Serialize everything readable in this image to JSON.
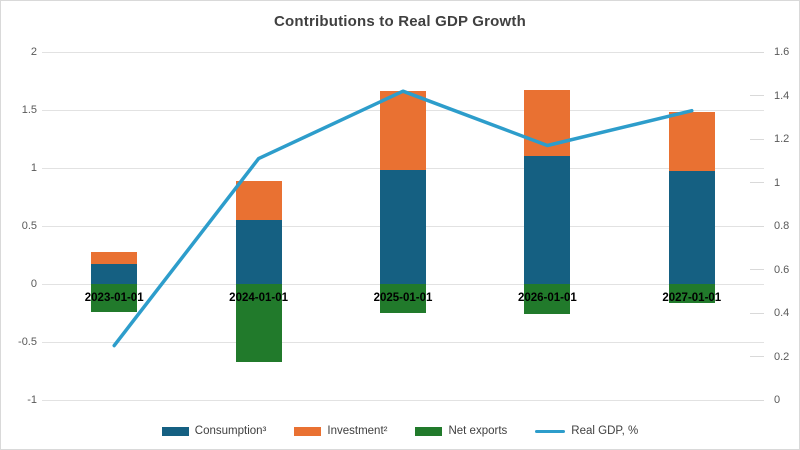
{
  "title": "Contributions to Real GDP Growth",
  "colors": {
    "consumption": "#156082",
    "investment": "#e97132",
    "net_exports": "#217a2b",
    "real_gdp_line": "#2d9dcb",
    "grid": "#e2e2e2",
    "right_tick": "#d9d9d9",
    "axis_tick_label": "#595959",
    "category_label": "#000000",
    "title_color": "#404040",
    "background": "#ffffff",
    "border": "#d9d9d9"
  },
  "chart_data": {
    "type": "bar",
    "stacked": true,
    "title": "Contributions to Real GDP Growth",
    "categories": [
      "2023-01-01",
      "2024-01-01",
      "2025-01-01",
      "2026-01-01",
      "2027-01-01"
    ],
    "series": [
      {
        "name": "Consumption³",
        "kind": "bar",
        "axis": "left",
        "color": "#156082",
        "values": [
          0.17,
          0.55,
          0.98,
          1.1,
          0.97
        ]
      },
      {
        "name": "Investment²",
        "kind": "bar",
        "axis": "left",
        "color": "#e97132",
        "values": [
          0.11,
          0.34,
          0.68,
          0.57,
          0.51
        ]
      },
      {
        "name": "Net exports",
        "kind": "bar",
        "axis": "left",
        "color": "#217a2b",
        "values": [
          -0.24,
          -0.67,
          -0.25,
          -0.26,
          -0.16
        ]
      },
      {
        "name": "Real GDP, %",
        "kind": "line",
        "axis": "right",
        "color": "#2d9dcb",
        "values": [
          0.25,
          1.11,
          1.42,
          1.17,
          1.33
        ]
      }
    ],
    "left_axis": {
      "min": -1,
      "max": 2,
      "step": 0.5,
      "ticks": [
        "2",
        "1.5",
        "1",
        "0.5",
        "0",
        "-0.5",
        "-1"
      ]
    },
    "right_axis": {
      "min": 0,
      "max": 1.6,
      "step": 0.2,
      "ticks": [
        "1.6",
        "1.4",
        "1.2",
        "1",
        "0.8",
        "0.6",
        "0.4",
        "0.2",
        "0"
      ]
    },
    "grid": true,
    "legend_position": "bottom",
    "xlabel": "",
    "ylabel": ""
  }
}
